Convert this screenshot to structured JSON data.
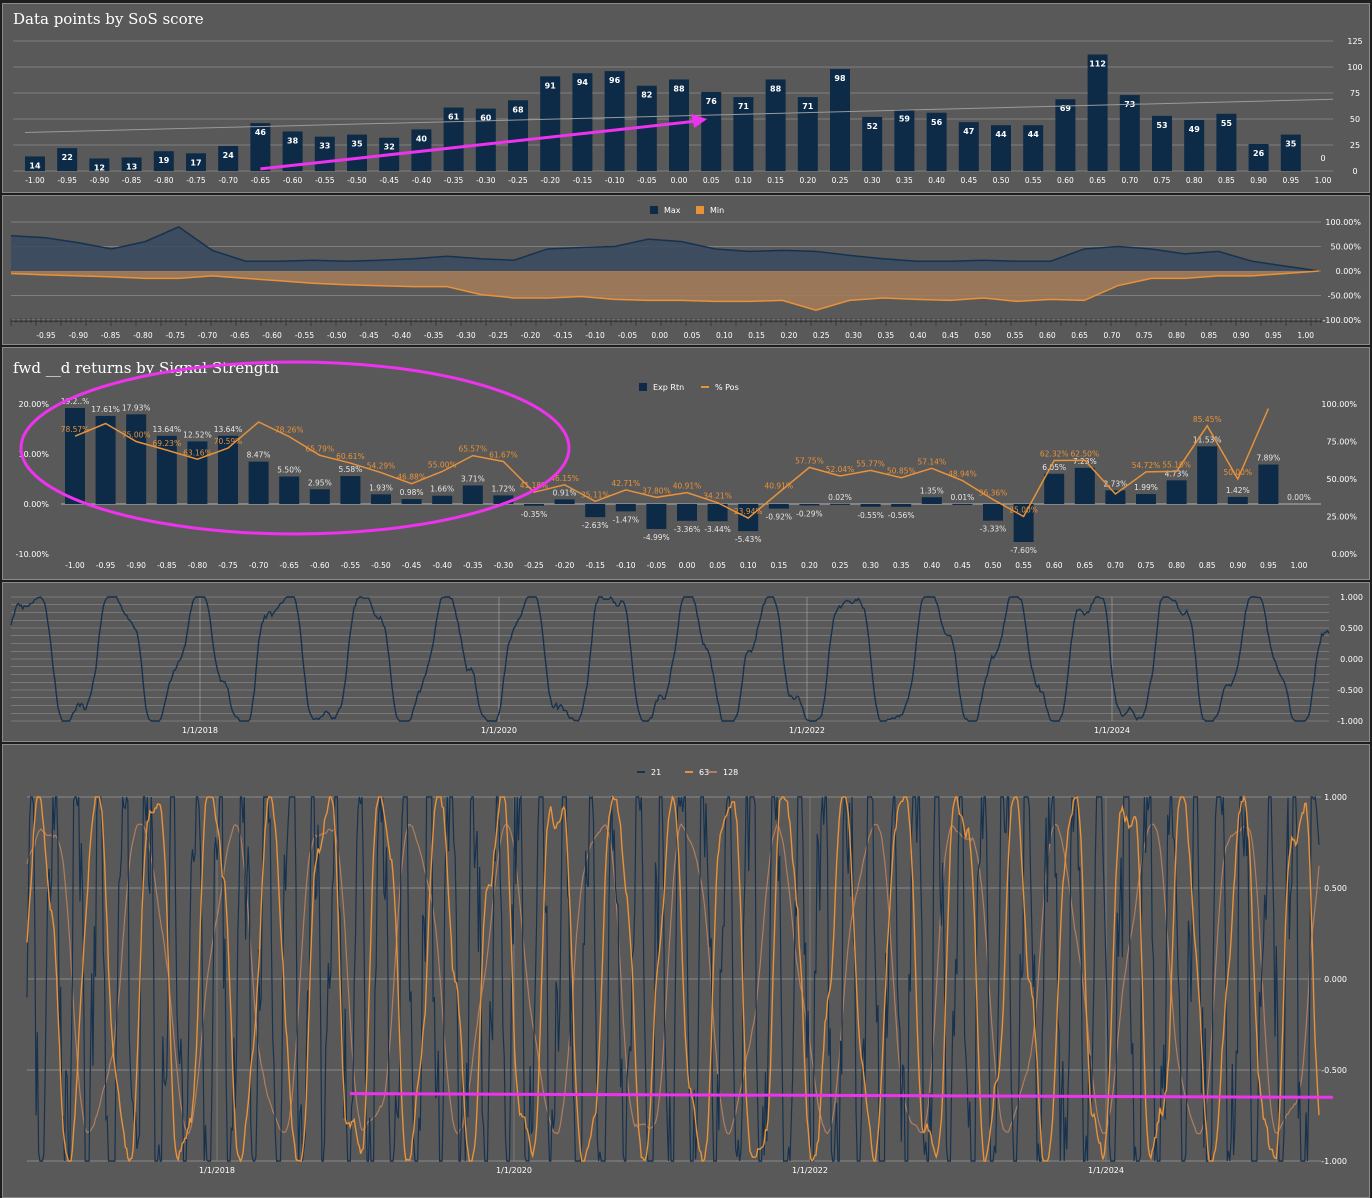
{
  "panels": {
    "p1_title": "Data points by SoS score",
    "p3_title": "fwd __d returns by Signal Strength"
  },
  "colors": {
    "navy": "#0d2a47",
    "line_navy": "#17324f",
    "orange": "#e8923a",
    "tan": "#b07e5e",
    "magenta": "#ee33ee",
    "panel_bg": "#595959",
    "grid": "#8c8c8c"
  },
  "chart_data": [
    {
      "type": "bar",
      "title": "Data points by SoS score",
      "categories": [
        "-1.00",
        "-0.95",
        "-0.90",
        "-0.85",
        "-0.80",
        "-0.75",
        "-0.70",
        "-0.65",
        "-0.60",
        "-0.55",
        "-0.50",
        "-0.45",
        "-0.40",
        "-0.35",
        "-0.30",
        "-0.25",
        "-0.20",
        "-0.15",
        "-0.10",
        "-0.05",
        "0.00",
        "0.05",
        "0.10",
        "0.15",
        "0.20",
        "0.25",
        "0.30",
        "0.35",
        "0.40",
        "0.45",
        "0.50",
        "0.55",
        "0.60",
        "0.65",
        "0.70",
        "0.75",
        "0.80",
        "0.85",
        "0.90",
        "0.95",
        "1.00"
      ],
      "values": [
        14,
        22,
        12,
        13,
        19,
        17,
        24,
        46,
        38,
        33,
        35,
        32,
        40,
        61,
        60,
        68,
        91,
        94,
        96,
        82,
        88,
        76,
        71,
        88,
        71,
        98,
        52,
        59,
        56,
        47,
        44,
        44,
        69,
        112,
        73,
        53,
        49,
        55,
        26,
        35,
        0
      ],
      "y_ticks": [
        "0",
        "25",
        "50",
        "75",
        "100",
        "125"
      ],
      "ylim": [
        0,
        125
      ],
      "trendline": [
        37,
        69
      ],
      "arrow_annotation": {
        "from_category": "-0.65",
        "to_category": "0.05"
      },
      "grid": true
    },
    {
      "type": "area",
      "legend": [
        "Max",
        "Min"
      ],
      "legend_position": "top",
      "x_labels": [
        "-0.95",
        "-0.90",
        "-0.85",
        "-0.80",
        "-0.75",
        "-0.70",
        "-0.65",
        "-0.60",
        "-0.55",
        "-0.50",
        "-0.45",
        "-0.40",
        "-0.35",
        "-0.30",
        "-0.25",
        "-0.20",
        "-0.15",
        "-0.10",
        "-0.05",
        "0.00",
        "0.05",
        "0.10",
        "0.15",
        "0.20",
        "0.25",
        "0.30",
        "0.35",
        "0.40",
        "0.45",
        "0.50",
        "0.55",
        "0.60",
        "0.65",
        "0.70",
        "0.75",
        "0.80",
        "0.85",
        "0.90",
        "0.95",
        "1.00"
      ],
      "max": [
        72,
        68,
        58,
        45,
        60,
        90,
        42,
        20,
        20,
        22,
        20,
        22,
        25,
        30,
        25,
        22,
        45,
        48,
        50,
        65,
        60,
        45,
        40,
        42,
        40,
        32,
        25,
        20,
        20,
        22,
        20,
        20,
        45,
        50,
        45,
        35,
        40,
        20,
        10,
        0
      ],
      "min": [
        -5,
        -8,
        -10,
        -12,
        -15,
        -15,
        -10,
        -15,
        -20,
        -25,
        -28,
        -30,
        -32,
        -32,
        -48,
        -55,
        -55,
        -52,
        -58,
        -60,
        -60,
        -62,
        -62,
        -60,
        -80,
        -60,
        -55,
        -58,
        -60,
        -55,
        -62,
        -58,
        -60,
        -30,
        -15,
        -15,
        -10,
        -10,
        -5,
        0
      ],
      "y_ticks": [
        "100.00%",
        "50.00%",
        "0.00%",
        "-50.00%",
        "-100.00%"
      ],
      "ylim": [
        -100,
        100
      ],
      "grid": true
    },
    {
      "type": "bar",
      "title": "fwd __d returns by Signal Strength",
      "legend": [
        "Exp Rtn",
        "% Pos"
      ],
      "legend_position": "top",
      "categories": [
        "-1.00",
        "-0.95",
        "-0.90",
        "-0.85",
        "-0.80",
        "-0.75",
        "-0.70",
        "-0.65",
        "-0.60",
        "-0.55",
        "-0.50",
        "-0.45",
        "-0.40",
        "-0.35",
        "-0.30",
        "-0.25",
        "-0.20",
        "-0.15",
        "-0.10",
        "-0.05",
        "0.00",
        "0.05",
        "0.10",
        "0.15",
        "0.20",
        "0.25",
        "0.30",
        "0.35",
        "0.40",
        "0.45",
        "0.50",
        "0.55",
        "0.60",
        "0.65",
        "0.70",
        "0.75",
        "0.80",
        "0.85",
        "0.90",
        "0.95",
        "1.00"
      ],
      "series": [
        {
          "name": "Exp Rtn",
          "values": [
            19.2,
            17.61,
            17.93,
            13.64,
            12.52,
            13.64,
            8.47,
            5.5,
            2.95,
            5.58,
            1.93,
            0.98,
            1.66,
            3.71,
            1.72,
            -0.35,
            0.91,
            -2.63,
            -1.47,
            -4.99,
            -3.36,
            -3.44,
            -5.43,
            -0.92,
            -0.29,
            0.02,
            -0.55,
            -0.56,
            1.35,
            0.01,
            -3.33,
            -7.6,
            6.05,
            7.23,
            2.73,
            1.99,
            4.73,
            11.53,
            1.42,
            7.89,
            0.0
          ],
          "labels": [
            "19.2..%",
            "17.61%",
            "17.93%",
            "13.64%",
            "12.52%",
            "13.64%",
            "8.47%",
            "5.50%",
            "2.95%",
            "5.58%",
            "1.93%",
            "0.98%",
            "1.66%",
            "3.71%",
            "1.72%",
            "-0.35%",
            "0.91%",
            "-2.63%",
            "-1.47%",
            "-4.99%",
            "-3.36%",
            "-3.44%",
            "-5.43%",
            "-0.92%",
            "-0.29%",
            "0.02%",
            "-0.55%",
            "-0.56%",
            "1.35%",
            "0.01%",
            "-3.33%",
            "-7.60%",
            "6.05%",
            "7.23%",
            "2.73%",
            "1.99%",
            "4.73%",
            "11.53%",
            "1.42%",
            "7.89%",
            "0.00%"
          ]
        },
        {
          "name": "% Pos",
          "values": [
            78.57,
            87,
            75.0,
            69.23,
            63.16,
            70.59,
            88,
            78.26,
            65.79,
            60.61,
            54.29,
            46.88,
            55.0,
            65.57,
            61.67,
            41.18,
            46.15,
            35.11,
            42.71,
            37.8,
            40.91,
            34.21,
            23.94,
            40.91,
            57.75,
            52.04,
            55.77,
            50.85,
            57.14,
            48.94,
            36.36,
            25.0,
            62.32,
            62.5,
            40,
            54.72,
            55.1,
            85.45,
            50.0,
            97,
            null
          ],
          "labels": [
            "78.57%",
            "",
            "75.00%",
            "69.23%",
            "63.16%",
            "70.59%",
            "",
            "78.26%",
            "65.79%",
            "60.61%",
            "54.29%",
            "46.88%",
            "55.00%",
            "65.57%",
            "61.67%",
            "41.18%",
            "46.15%",
            "35.11%",
            "42.71%",
            "37.80%",
            "40.91%",
            "34.21%",
            "23.94%",
            "40.91%",
            "57.75%",
            "52.04%",
            "55.77%",
            "50.85%",
            "57.14%",
            "48.94%",
            "36.36%",
            "25.00%",
            "62.32%",
            "62.50%",
            "",
            "54.72%",
            "55.10%",
            "85.45%",
            "50.00%",
            "",
            ""
          ]
        }
      ],
      "y_ticks_left": [
        "20.00%",
        "10.00%",
        "0.00%",
        "-10.00%"
      ],
      "y_ticks_right": [
        "100.00%",
        "75.00%",
        "50.00%",
        "25.00%",
        "0.00%"
      ],
      "ylim_left": [
        -10,
        20
      ],
      "ylim_right": [
        0,
        100
      ],
      "ellipse_annotation": true
    },
    {
      "type": "line",
      "x_labels": [
        "1/1/2018",
        "1/1/2020",
        "1/1/2022",
        "1/1/2024"
      ],
      "y_ticks": [
        "1.000",
        "0.500",
        "0.000",
        "-0.500",
        "-1.000"
      ],
      "ylim": [
        -1,
        1
      ],
      "grid": true
    },
    {
      "type": "line",
      "legend": [
        "21",
        "63",
        "128"
      ],
      "legend_position": "top",
      "x_labels": [
        "1/1/2018",
        "1/1/2020",
        "1/1/2022",
        "1/1/2024"
      ],
      "y_ticks": [
        "1.000",
        "0.500",
        "0.000",
        "-0.500",
        "-1.000"
      ],
      "ylim": [
        -1,
        1
      ],
      "horizontal_annotation": true,
      "grid": true
    }
  ]
}
